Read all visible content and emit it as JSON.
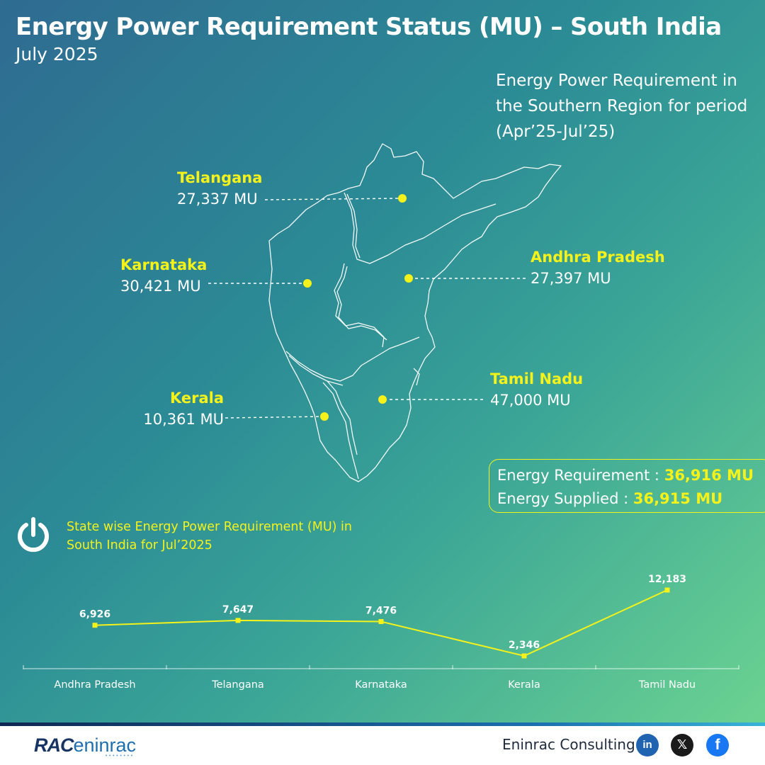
{
  "header": {
    "title": "Energy Power Requirement Status (MU) – South India",
    "subtitle": "July 2025"
  },
  "map": {
    "note": "Energy Power Requirement in the Southern Region for period (Apr’25-Jul’25)",
    "dot_color": "#f4f21a",
    "callouts": [
      {
        "state": "Telangana",
        "value": "27,337 MU"
      },
      {
        "state": "Karnataka",
        "value": "30,421 MU"
      },
      {
        "state": "Andhra Pradesh",
        "value": "27,397 MU"
      },
      {
        "state": "Tamil Nadu",
        "value": "47,000 MU"
      },
      {
        "state": "Kerala",
        "value": "10,361 MU"
      }
    ]
  },
  "summary": {
    "requirement_label": "Energy Requirement :",
    "requirement_value": "36,916 MU",
    "supplied_label": "Energy Supplied :",
    "supplied_value": "36,915 MU"
  },
  "chart_caption": "State wise Energy Power Requirement (MU) in South India for Jul’2025",
  "icons": {
    "power": "power-icon",
    "linkedin": "linkedin-icon",
    "x": "x-icon",
    "facebook": "facebook-icon"
  },
  "chart_data": {
    "type": "line",
    "categories": [
      "Andhra Pradesh",
      "Telangana",
      "Karnataka",
      "Kerala",
      "Tamil Nadu"
    ],
    "values": [
      6926,
      7647,
      7476,
      2346,
      12183
    ],
    "data_labels": [
      "6,926",
      "7,647",
      "7,476",
      "2,346",
      "12,183"
    ],
    "title": "",
    "xlabel": "",
    "ylabel": "",
    "line_color": "#f4f21a",
    "grid": false,
    "legend": "none"
  },
  "footer": {
    "logo_text": "RAC",
    "logo_tail": "eninrac",
    "logo_dots": "••••••••",
    "brand": "Eninrac Consulting",
    "linkedin_label": "in",
    "x_label": "𝕏",
    "facebook_label": "f"
  }
}
